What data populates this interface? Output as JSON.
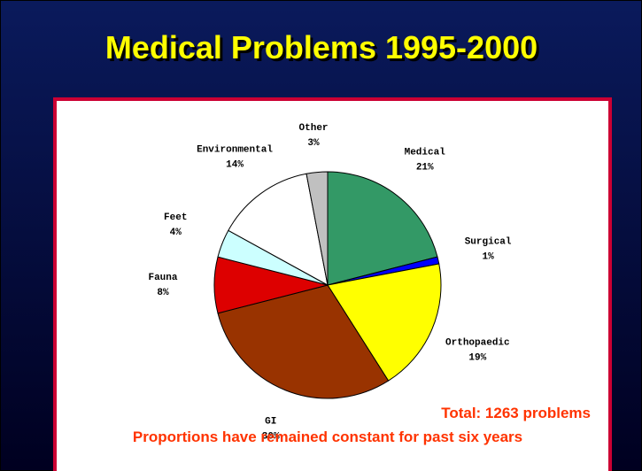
{
  "chart_data": {
    "type": "pie",
    "title": "Medical Problems 1995-2000",
    "categories": [
      "Medical",
      "Surgical",
      "Orthopaedic",
      "GI",
      "Fauna",
      "Feet",
      "Environmental",
      "Other"
    ],
    "values": [
      21,
      1,
      19,
      30,
      8,
      4,
      14,
      3
    ],
    "value_labels": [
      "21%",
      "1%",
      "19%",
      "30%",
      "8%",
      "4%",
      "14%",
      "3%"
    ],
    "colors": [
      "#339966",
      "#0000ff",
      "#ffff00",
      "#993300",
      "#dd0000",
      "#ccffff",
      "#ffffff",
      "#c0c0c0"
    ],
    "annotations": [
      "Total: 1263 problems",
      "Proportions have remained constant for past six years"
    ]
  }
}
